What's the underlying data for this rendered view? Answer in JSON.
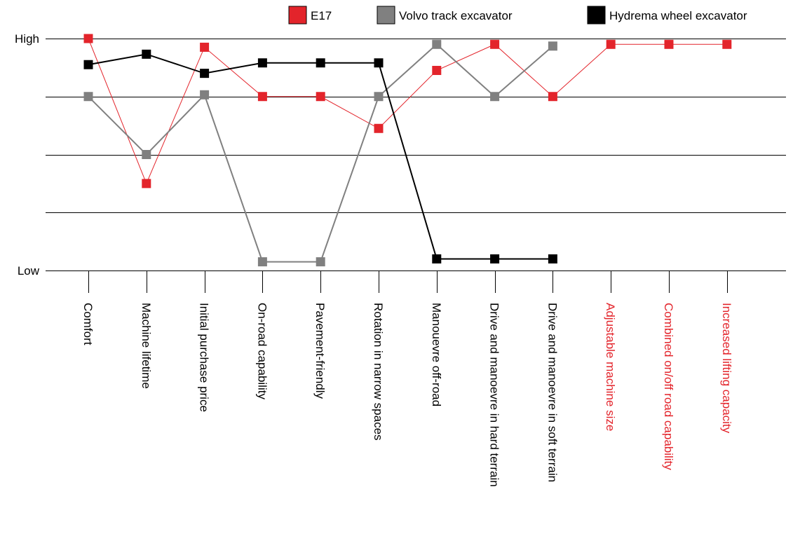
{
  "chart_data": {
    "type": "line",
    "y_tick_labels": {
      "high": "High",
      "low": "Low"
    },
    "ylim": [
      0,
      4
    ],
    "grid": true,
    "legend_position": "top-right",
    "categories": [
      {
        "label": "Comfort",
        "color": "#000000"
      },
      {
        "label": "Machine lifetime",
        "color": "#000000"
      },
      {
        "label": "Initial purchase price",
        "color": "#000000"
      },
      {
        "label": "On-road capability",
        "color": "#000000"
      },
      {
        "label": "Pavement-friendly",
        "color": "#000000"
      },
      {
        "label": "Rotation in narrow spaces",
        "color": "#000000"
      },
      {
        "label": "Manouevre off-road",
        "color": "#000000"
      },
      {
        "label": "Drive and manoevre in hard terrain",
        "color": "#000000"
      },
      {
        "label": "Drive and manoevre in soft terrain",
        "color": "#000000"
      },
      {
        "label": "Adjustable machine size",
        "color": "#e3242b"
      },
      {
        "label": "Combined on/off road capability",
        "color": "#e3242b"
      },
      {
        "label": "Increased lifting capacity",
        "color": "#e3242b"
      }
    ],
    "series": [
      {
        "name": "E17",
        "color": "#e3242b",
        "line_width": 1,
        "values": [
          4.0,
          1.5,
          3.85,
          3.0,
          3.0,
          2.45,
          3.45,
          3.9,
          3.0,
          3.9,
          3.9,
          3.9
        ]
      },
      {
        "name": "Volvo track excavator",
        "color": "#808080",
        "line_width": 2,
        "values": [
          3.0,
          2.0,
          3.03,
          0.15,
          0.15,
          3.0,
          3.9,
          3.0,
          3.87,
          null,
          null,
          null
        ]
      },
      {
        "name": "Hydrema wheel excavator",
        "color": "#000000",
        "line_width": 2,
        "values": [
          3.55,
          3.73,
          3.4,
          3.58,
          3.58,
          3.58,
          0.2,
          0.2,
          0.2,
          null,
          null,
          null
        ]
      }
    ]
  }
}
